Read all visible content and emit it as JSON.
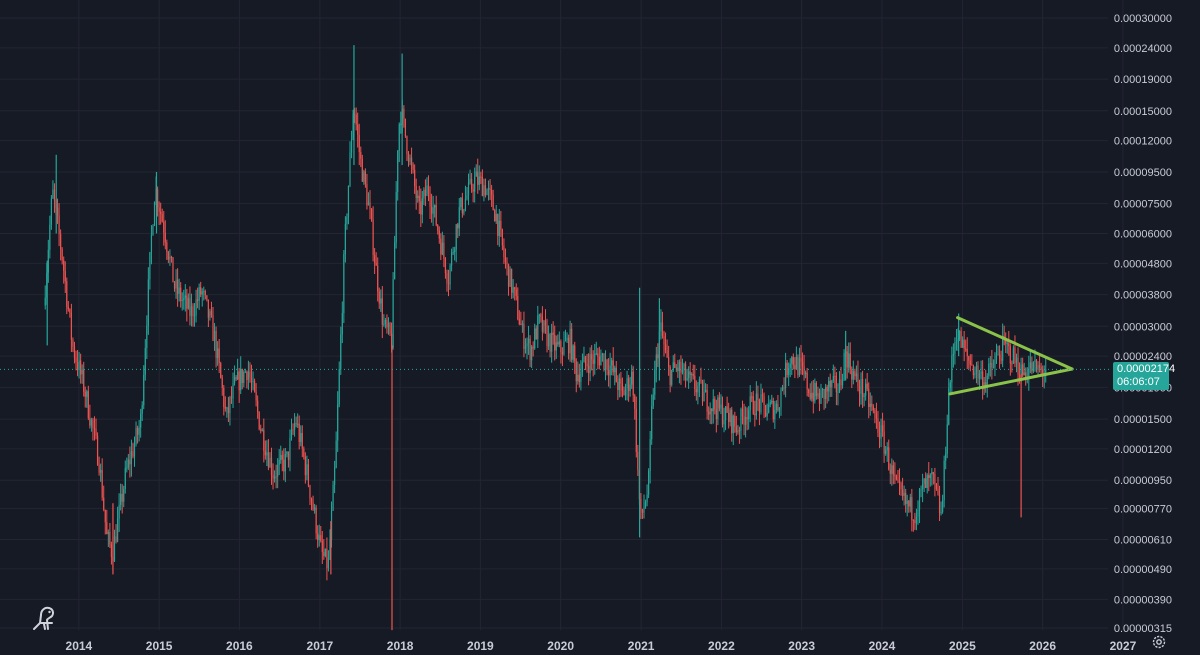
{
  "chart_data": {
    "type": "candlestick",
    "title": "",
    "xlabel": "",
    "ylabel": "",
    "y_scale": "log",
    "ylim": [
      3.15e-06,
      0.0003
    ],
    "xlim": [
      "2013-05-01",
      "2027-01-15"
    ],
    "y_ticks": [
      "0.00030000",
      "0.00024000",
      "0.00019000",
      "0.00015000",
      "0.00012000",
      "0.00009500",
      "0.00007500",
      "0.00006000",
      "0.00004800",
      "0.00003800",
      "0.00003000",
      "0.00002400",
      "0.00001900",
      "0.00001500",
      "0.00001200",
      "0.00000950",
      "0.00000770",
      "0.00000610",
      "0.00000490",
      "0.00000390",
      "0.00000315"
    ],
    "x_ticks": [
      "2014",
      "2015",
      "2016",
      "2017",
      "2018",
      "2019",
      "2020",
      "2021",
      "2022",
      "2023",
      "2024",
      "2025",
      "2026",
      "2027"
    ],
    "grid": true,
    "current_price": {
      "value": "0.00002174",
      "countdown": "06:06:07",
      "color": "#26a69a"
    },
    "annotations": {
      "triangle_upper": {
        "from": {
          "date": "2024-12-10",
          "value": 3.2e-05
        },
        "to": {
          "date": "2026-05-15",
          "value": 2.18e-05
        }
      },
      "triangle_lower": {
        "from": {
          "date": "2024-11-05",
          "value": 1.81e-05
        },
        "to": {
          "date": "2026-05-15",
          "value": 2.18e-05
        }
      },
      "color": "#8bc34a"
    },
    "price_path": [
      [
        "2013-08-01",
        3.5e-05
      ],
      [
        "2013-09-10",
        8.2e-05
      ],
      [
        "2013-10-25",
        5e-05
      ],
      [
        "2013-12-10",
        2.6e-05
      ],
      [
        "2014-02-01",
        1.9e-05
      ],
      [
        "2014-04-10",
        1.1e-05
      ],
      [
        "2014-05-15",
        6.2e-06
      ],
      [
        "2014-06-10",
        5.5e-06
      ],
      [
        "2014-08-10",
        1e-05
      ],
      [
        "2014-10-15",
        1.45e-05
      ],
      [
        "2014-12-05",
        6e-05
      ],
      [
        "2014-12-20",
        8.5e-05
      ],
      [
        "2015-02-01",
        6.2e-05
      ],
      [
        "2015-03-20",
        4e-05
      ],
      [
        "2015-06-01",
        3.3e-05
      ],
      [
        "2015-07-20",
        3.9e-05
      ],
      [
        "2015-09-15",
        2.8e-05
      ],
      [
        "2015-11-10",
        1.5e-05
      ],
      [
        "2015-12-15",
        1.9e-05
      ],
      [
        "2016-02-15",
        2.2e-05
      ],
      [
        "2016-04-15",
        1.4e-05
      ],
      [
        "2016-06-10",
        1e-05
      ],
      [
        "2016-08-10",
        1.1e-05
      ],
      [
        "2016-09-20",
        1.5e-05
      ],
      [
        "2016-11-10",
        1e-05
      ],
      [
        "2017-01-15",
        5.5e-06
      ],
      [
        "2017-02-15",
        5e-06
      ],
      [
        "2017-03-20",
        1.1e-05
      ],
      [
        "2017-05-01",
        5.5e-05
      ],
      [
        "2017-06-10",
        0.00016
      ],
      [
        "2017-07-10",
        0.000105
      ],
      [
        "2017-08-20",
        7.2e-05
      ],
      [
        "2017-09-20",
        4.6e-05
      ],
      [
        "2017-10-25",
        3e-05
      ],
      [
        "2017-11-30",
        2.7e-05
      ],
      [
        "2017-12-30",
        0.00013
      ],
      [
        "2018-01-12",
        0.00015
      ],
      [
        "2018-02-25",
        0.0001
      ],
      [
        "2018-04-05",
        7e-05
      ],
      [
        "2018-05-15",
        8.5e-05
      ],
      [
        "2018-07-01",
        6.1e-05
      ],
      [
        "2018-08-15",
        4.3e-05
      ],
      [
        "2018-10-01",
        7e-05
      ],
      [
        "2018-11-10",
        8e-05
      ],
      [
        "2018-12-15",
        9e-05
      ],
      [
        "2019-02-01",
        8.5e-05
      ],
      [
        "2019-03-20",
        6.9e-05
      ],
      [
        "2019-05-01",
        4.8e-05
      ],
      [
        "2019-06-10",
        3.8e-05
      ],
      [
        "2019-07-20",
        2.8e-05
      ],
      [
        "2019-08-25",
        2.5e-05
      ],
      [
        "2019-10-01",
        3.1e-05
      ],
      [
        "2019-11-15",
        2.7e-05
      ],
      [
        "2020-01-01",
        2.5e-05
      ],
      [
        "2020-02-20",
        2.7e-05
      ],
      [
        "2020-03-20",
        2.1e-05
      ],
      [
        "2020-05-10",
        2.3e-05
      ],
      [
        "2020-07-10",
        2.4e-05
      ],
      [
        "2020-08-25",
        2.2e-05
      ],
      [
        "2020-10-15",
        1.8e-05
      ],
      [
        "2020-11-30",
        2.1e-05
      ],
      [
        "2021-01-05",
        7e-06
      ],
      [
        "2021-02-10",
        9e-06
      ],
      [
        "2021-03-01",
        1.8e-05
      ],
      [
        "2021-04-05",
        3e-05
      ],
      [
        "2021-05-15",
        2.1e-05
      ],
      [
        "2021-06-25",
        2.2e-05
      ],
      [
        "2021-08-10",
        2e-05
      ],
      [
        "2021-09-20",
        1.9e-05
      ],
      [
        "2021-11-10",
        1.7e-05
      ],
      [
        "2021-12-30",
        1.6e-05
      ],
      [
        "2022-02-15",
        1.5e-05
      ],
      [
        "2022-03-20",
        1.4e-05
      ],
      [
        "2022-05-01",
        1.6e-05
      ],
      [
        "2022-06-15",
        1.7e-05
      ],
      [
        "2022-08-01",
        1.6e-05
      ],
      [
        "2022-09-20",
        1.65e-05
      ],
      [
        "2022-11-15",
        2.4e-05
      ],
      [
        "2022-12-30",
        2.2e-05
      ],
      [
        "2023-02-15",
        1.85e-05
      ],
      [
        "2023-04-01",
        1.75e-05
      ],
      [
        "2023-05-15",
        1.9e-05
      ],
      [
        "2023-06-30",
        1.9e-05
      ],
      [
        "2023-07-25",
        2.5e-05
      ],
      [
        "2023-09-10",
        2e-05
      ],
      [
        "2023-10-25",
        1.8e-05
      ],
      [
        "2023-12-10",
        1.5e-05
      ],
      [
        "2024-01-25",
        1.2e-05
      ],
      [
        "2024-03-10",
        9e-06
      ],
      [
        "2024-04-20",
        8e-06
      ],
      [
        "2024-06-05",
        7.5e-06
      ],
      [
        "2024-07-15",
        9e-06
      ],
      [
        "2024-08-25",
        9.5e-06
      ],
      [
        "2024-10-05",
        7.2e-06
      ],
      [
        "2024-10-20",
        1.1e-05
      ],
      [
        "2024-11-05",
        1.8e-05
      ],
      [
        "2024-12-10",
        2.9e-05
      ],
      [
        "2025-01-25",
        2.4e-05
      ],
      [
        "2025-03-10",
        2.15e-05
      ],
      [
        "2025-04-20",
        2e-05
      ],
      [
        "2025-06-01",
        2.25e-05
      ],
      [
        "2025-07-15",
        2.6e-05
      ],
      [
        "2025-08-25",
        2.4e-05
      ],
      [
        "2025-10-05",
        2.1e-05
      ],
      [
        "2025-11-15",
        2.2e-05
      ],
      [
        "2025-12-30",
        2.15e-05
      ],
      [
        "2026-01-20",
        2.17e-05
      ]
    ],
    "wicks": [
      {
        "date": "2013-08-10",
        "low": 2.6e-05,
        "high": 4.9e-05
      },
      {
        "date": "2013-09-20",
        "low": 6e-05,
        "high": 0.000108
      },
      {
        "date": "2014-06-05",
        "low": 4.7e-06,
        "high": 8e-06
      },
      {
        "date": "2014-12-20",
        "low": 6e-05,
        "high": 9.5e-05
      },
      {
        "date": "2017-02-20",
        "low": 4.7e-06,
        "high": 7e-06
      },
      {
        "date": "2017-06-05",
        "low": 0.0001,
        "high": 0.000245
      },
      {
        "date": "2017-11-25",
        "low": 3.1e-06,
        "high": 2.6e-05
      },
      {
        "date": "2018-01-10",
        "low": 0.0001,
        "high": 0.00023
      },
      {
        "date": "2020-12-25",
        "low": 6.2e-06,
        "high": 4e-05
      },
      {
        "date": "2021-03-25",
        "low": 2e-05,
        "high": 3.7e-05
      },
      {
        "date": "2023-07-20",
        "low": 2e-05,
        "high": 2.9e-05
      },
      {
        "date": "2024-12-15",
        "low": 2.4e-05,
        "high": 3.3e-05
      },
      {
        "date": "2025-09-25",
        "low": 7.2e-06,
        "high": 2.1e-05
      }
    ]
  },
  "icons": {
    "logo": "dinosaur-logo-icon",
    "settings": "gear-icon"
  },
  "colors": {
    "up": "#26a69a",
    "down": "#ef5350",
    "background": "#161a25",
    "grid": "#232632",
    "text": "#c9ccd6",
    "price_line": "#26a69a"
  }
}
